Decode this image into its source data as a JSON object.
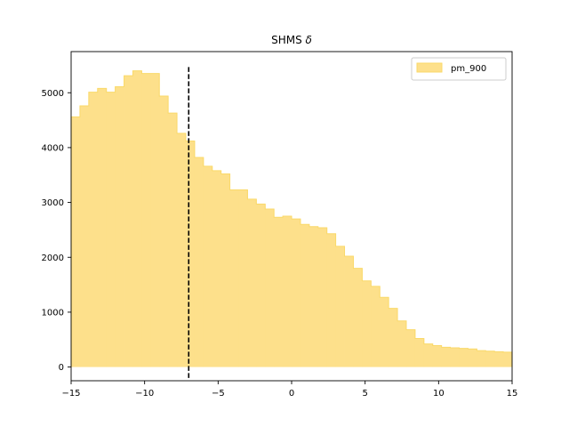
{
  "chart_data": {
    "type": "histogram",
    "title": "SHMS δ",
    "title_prefix": "SHMS",
    "title_symbol": "δ",
    "xlabel": "",
    "ylabel": "",
    "xlim": [
      -15,
      15
    ],
    "ylim": [
      -250,
      5750
    ],
    "xticks": [
      -15,
      -10,
      -5,
      0,
      5,
      10,
      15
    ],
    "xtick_labels": [
      "−15",
      "−10",
      "−5",
      "0",
      "5",
      "10",
      "15"
    ],
    "yticks": [
      0,
      1000,
      2000,
      3000,
      4000,
      5000
    ],
    "ytick_labels": [
      "0",
      "1000",
      "2000",
      "3000",
      "4000",
      "5000"
    ],
    "grid": false,
    "legend_position": "top-right",
    "bin_width": 0.6,
    "series": [
      {
        "name": "pm_900",
        "color": "#fde08b",
        "edge_color": "#fad96a",
        "bin_edges": [
          -15.0,
          -14.4,
          -13.8,
          -13.2,
          -12.6,
          -12.0,
          -11.4,
          -10.8,
          -10.2,
          -9.6,
          -9.0,
          -8.4,
          -7.8,
          -7.2,
          -6.6,
          -6.0,
          -5.4,
          -4.8,
          -4.2,
          -3.6,
          -3.0,
          -2.4,
          -1.8,
          -1.2,
          -0.6,
          0.0,
          0.6,
          1.2,
          1.8,
          2.4,
          3.0,
          3.6,
          4.2,
          4.8,
          5.4,
          6.0,
          6.6,
          7.2,
          7.8,
          8.4,
          9.0,
          9.6,
          10.2,
          10.8,
          11.4,
          12.0,
          12.6,
          13.2,
          13.8,
          14.4,
          15.0
        ],
        "values": [
          4560,
          4760,
          5010,
          5080,
          5010,
          5110,
          5310,
          5400,
          5350,
          5350,
          4940,
          4630,
          4260,
          4120,
          3820,
          3660,
          3580,
          3520,
          3230,
          3230,
          3060,
          2970,
          2880,
          2730,
          2750,
          2700,
          2600,
          2560,
          2540,
          2430,
          2200,
          2020,
          1800,
          1570,
          1470,
          1270,
          1070,
          840,
          680,
          520,
          420,
          390,
          360,
          350,
          340,
          330,
          300,
          290,
          280,
          270
        ]
      }
    ],
    "vline": {
      "x": -7.0,
      "y_range": [
        -200,
        5500
      ],
      "style": "dashed",
      "color": "#000000"
    }
  }
}
